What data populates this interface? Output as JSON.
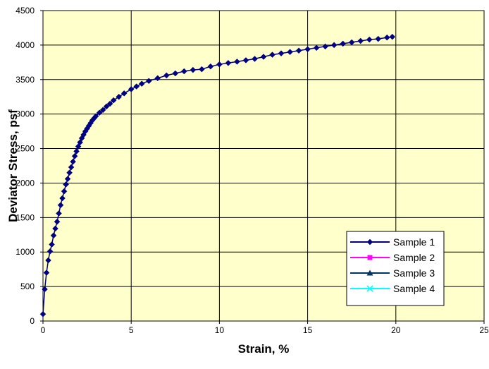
{
  "chart_data": {
    "type": "line",
    "title": "",
    "xlabel": "Strain, %",
    "ylabel": "Deviator Stress, psf",
    "xlim": [
      0,
      25
    ],
    "ylim": [
      0,
      4500
    ],
    "x_ticks": [
      "0",
      "5",
      "10",
      "15",
      "20",
      "25"
    ],
    "y_ticks": [
      "0",
      "500",
      "1000",
      "1500",
      "2000",
      "2500",
      "3000",
      "3500",
      "4000",
      "4500"
    ],
    "grid": true,
    "legend_position": "bottom-right",
    "colors": {
      "plot_background": "#FFFFCC",
      "grid": "#000000",
      "sample1": "#000080",
      "sample2": "#FF00FF",
      "sample3": "#003366",
      "sample4": "#00FFFF"
    },
    "legend": [
      {
        "name": "Sample 1",
        "marker": "diamond",
        "color": "#000080"
      },
      {
        "name": "Sample 2",
        "marker": "square",
        "color": "#FF00FF"
      },
      {
        "name": "Sample 3",
        "marker": "triangle",
        "color": "#003366"
      },
      {
        "name": "Sample 4",
        "marker": "x",
        "color": "#00FFFF"
      }
    ],
    "series": [
      {
        "name": "Sample 1",
        "marker": "diamond",
        "color": "#000080",
        "points": [
          [
            0,
            100
          ],
          [
            0.1,
            460
          ],
          [
            0.2,
            700
          ],
          [
            0.3,
            880
          ],
          [
            0.4,
            1010
          ],
          [
            0.5,
            1110
          ],
          [
            0.6,
            1240
          ],
          [
            0.7,
            1340
          ],
          [
            0.8,
            1440
          ],
          [
            0.9,
            1560
          ],
          [
            1.0,
            1680
          ],
          [
            1.1,
            1780
          ],
          [
            1.2,
            1880
          ],
          [
            1.3,
            1980
          ],
          [
            1.4,
            2060
          ],
          [
            1.5,
            2150
          ],
          [
            1.6,
            2230
          ],
          [
            1.7,
            2310
          ],
          [
            1.8,
            2390
          ],
          [
            1.9,
            2460
          ],
          [
            2.0,
            2530
          ],
          [
            2.1,
            2590
          ],
          [
            2.2,
            2650
          ],
          [
            2.3,
            2700
          ],
          [
            2.4,
            2750
          ],
          [
            2.5,
            2790
          ],
          [
            2.6,
            2830
          ],
          [
            2.7,
            2870
          ],
          [
            2.8,
            2910
          ],
          [
            2.9,
            2940
          ],
          [
            3.0,
            2970
          ],
          [
            3.2,
            3020
          ],
          [
            3.4,
            3060
          ],
          [
            3.6,
            3110
          ],
          [
            3.8,
            3150
          ],
          [
            4.0,
            3200
          ],
          [
            4.3,
            3250
          ],
          [
            4.6,
            3300
          ],
          [
            5.0,
            3360
          ],
          [
            5.3,
            3400
          ],
          [
            5.6,
            3440
          ],
          [
            6.0,
            3480
          ],
          [
            6.5,
            3520
          ],
          [
            7.0,
            3560
          ],
          [
            7.5,
            3590
          ],
          [
            8.0,
            3620
          ],
          [
            8.5,
            3640
          ],
          [
            9.0,
            3650
          ],
          [
            9.5,
            3690
          ],
          [
            10.0,
            3720
          ],
          [
            10.5,
            3740
          ],
          [
            11.0,
            3760
          ],
          [
            11.5,
            3780
          ],
          [
            12.0,
            3800
          ],
          [
            12.5,
            3830
          ],
          [
            13.0,
            3860
          ],
          [
            13.5,
            3880
          ],
          [
            14.0,
            3900
          ],
          [
            14.5,
            3920
          ],
          [
            15.0,
            3940
          ],
          [
            15.5,
            3960
          ],
          [
            16.0,
            3980
          ],
          [
            16.5,
            4000
          ],
          [
            17.0,
            4020
          ],
          [
            17.5,
            4040
          ],
          [
            18.0,
            4060
          ],
          [
            18.5,
            4080
          ],
          [
            19.0,
            4090
          ],
          [
            19.5,
            4110
          ],
          [
            19.8,
            4120
          ]
        ]
      },
      {
        "name": "Sample 2",
        "marker": "square",
        "color": "#FF00FF",
        "points": []
      },
      {
        "name": "Sample 3",
        "marker": "triangle",
        "color": "#003366",
        "points": []
      },
      {
        "name": "Sample 4",
        "marker": "x",
        "color": "#00FFFF",
        "points": []
      }
    ]
  }
}
